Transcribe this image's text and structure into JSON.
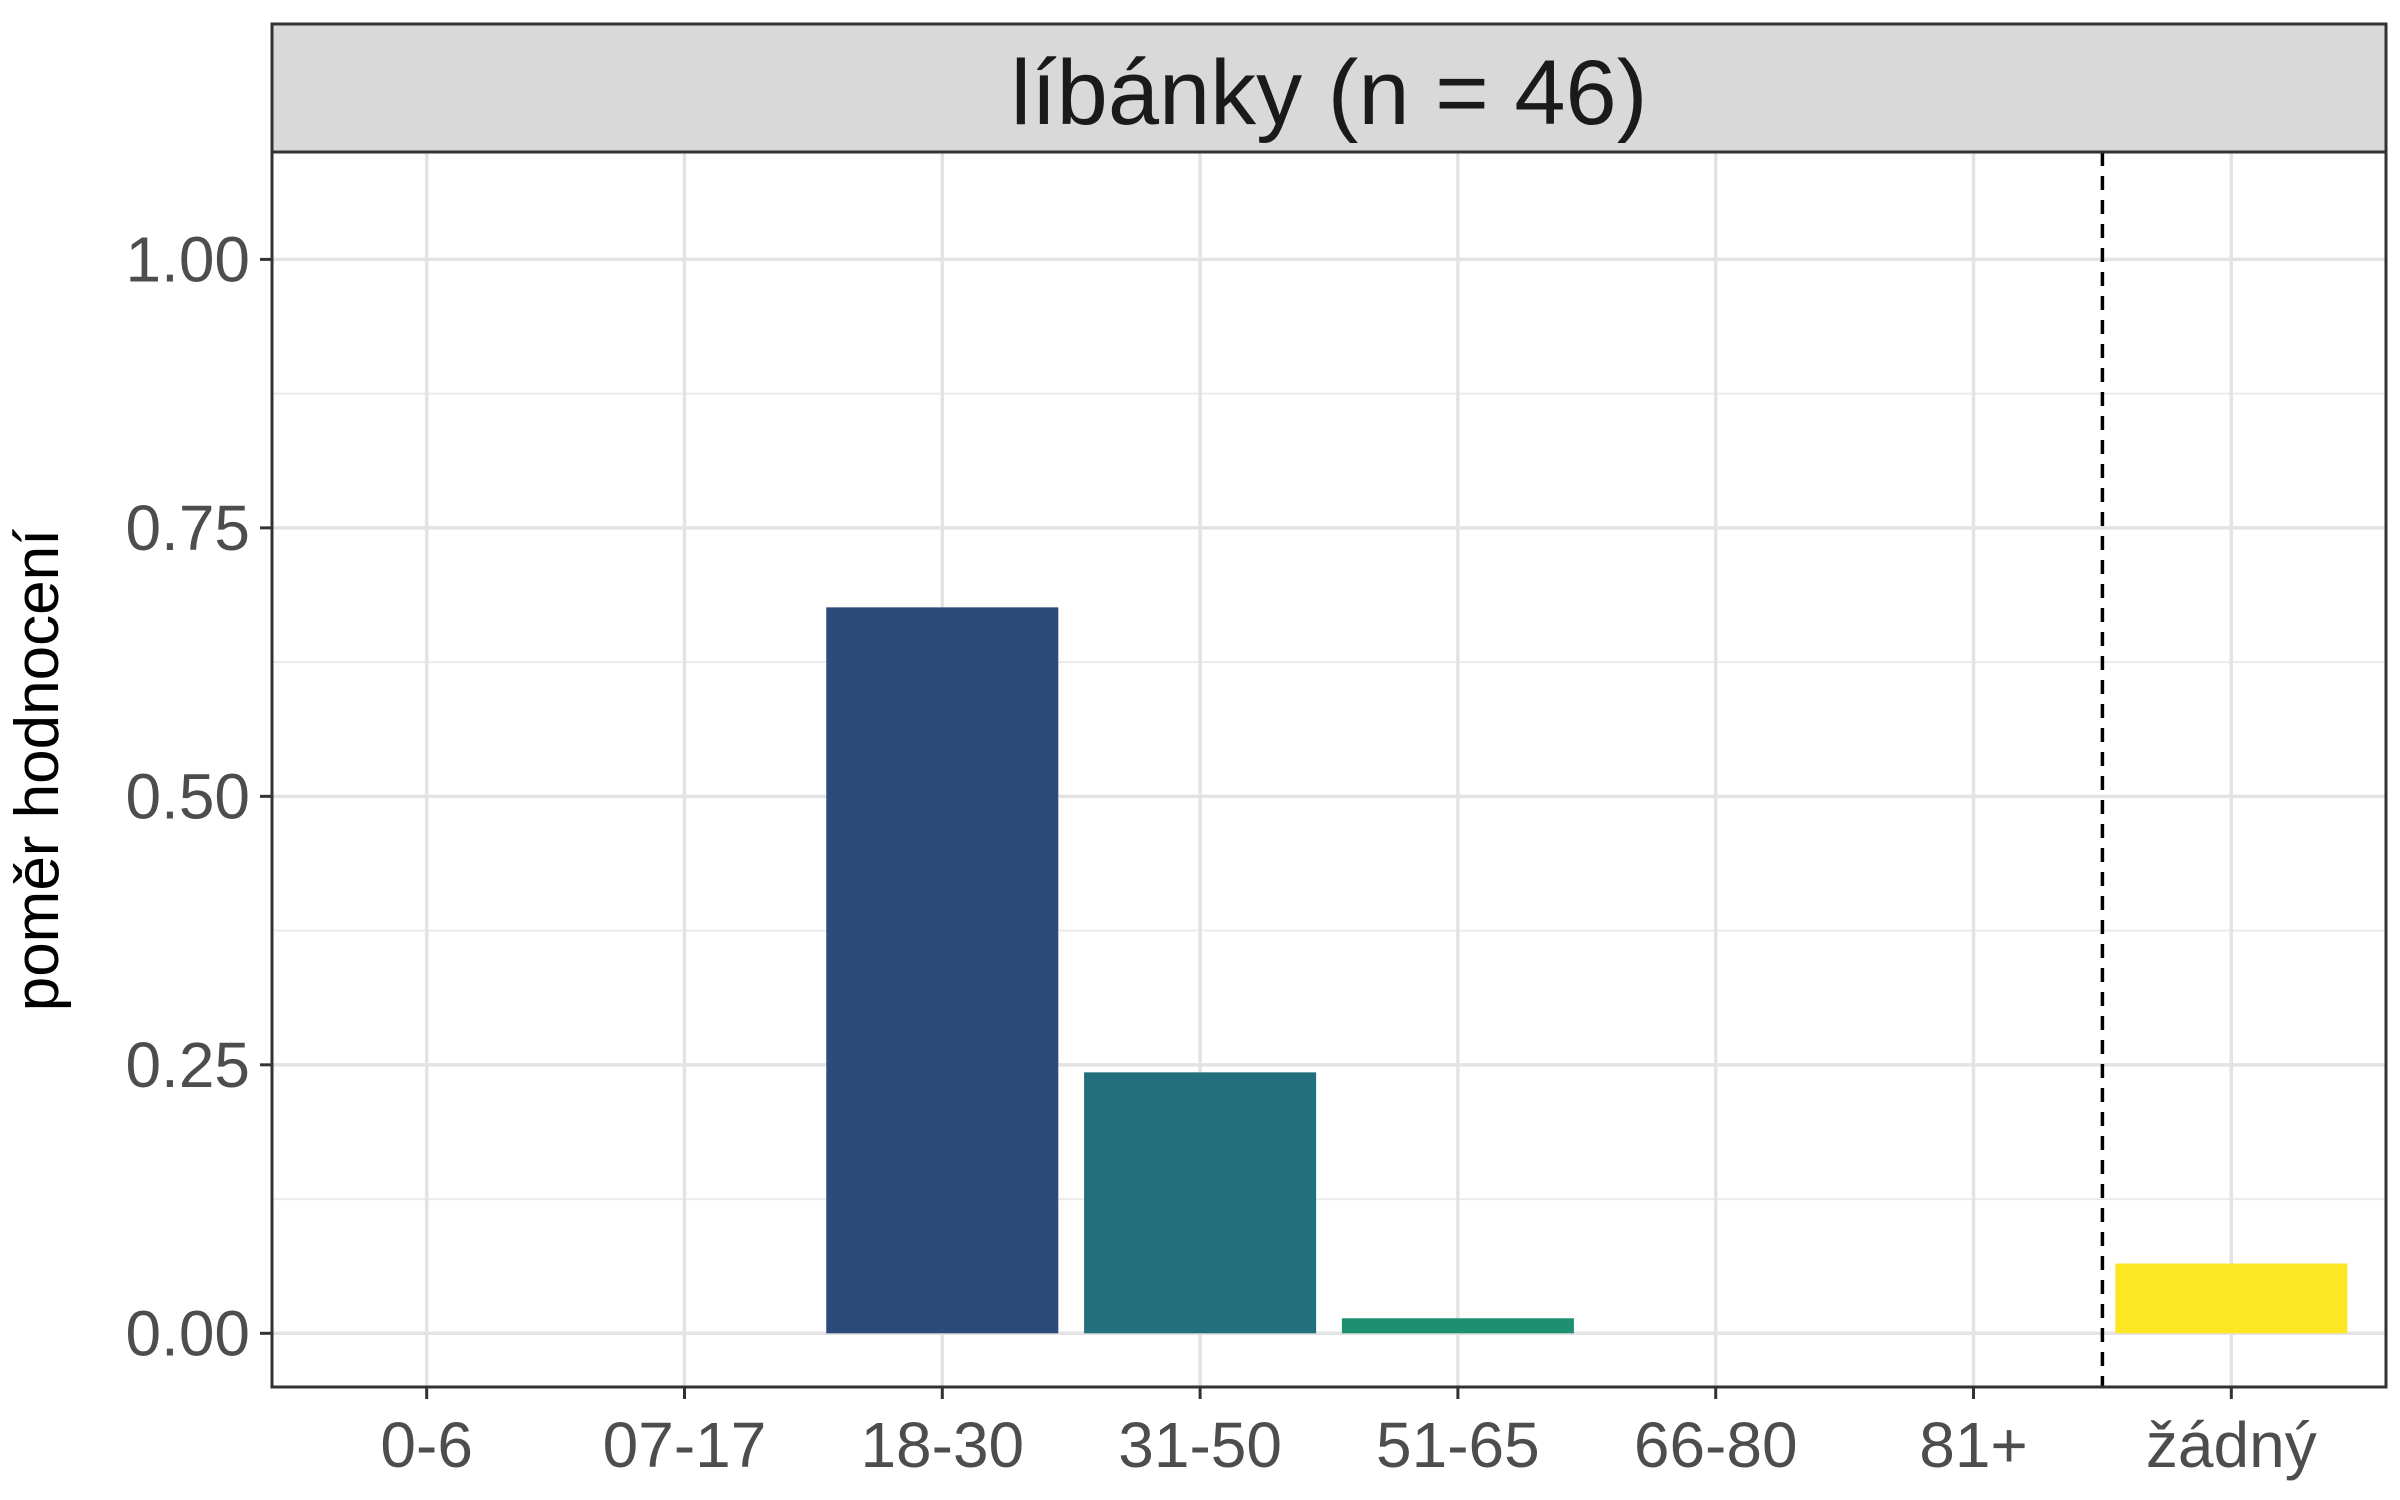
{
  "chart_data": {
    "type": "bar",
    "title": "líbánky (n = 46)",
    "xlabel": "",
    "ylabel": "poměr hodnocení",
    "categories": [
      "0-6",
      "07-17",
      "18-30",
      "31-50",
      "51-65",
      "66-80",
      "81+",
      "žádný"
    ],
    "values": [
      0,
      0,
      0.676,
      0.243,
      0.014,
      0,
      0,
      0.065
    ],
    "colors": [
      "#440154",
      "#46327e",
      "#2c4a7a",
      "#21707c",
      "#1f8f71",
      "#4ac16d",
      "#a0da39",
      "#fde725"
    ],
    "ylim": [
      -0.05,
      1.1
    ],
    "yticks": [
      0,
      0.25,
      0.5,
      0.75,
      1.0
    ],
    "ytick_labels": [
      "0.00",
      "0.25",
      "0.50",
      "0.75",
      "1.00"
    ],
    "reference_line": {
      "between_categories": [
        "81+",
        "žádný"
      ],
      "style": "dashed"
    },
    "grid": true
  }
}
